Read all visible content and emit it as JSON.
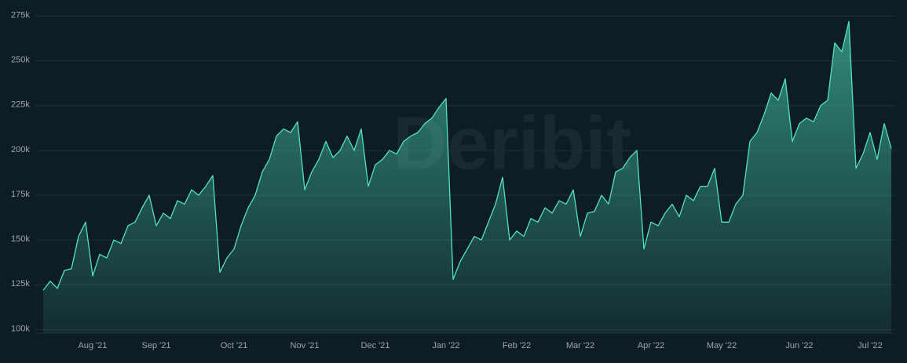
{
  "chart_data": {
    "type": "area",
    "watermark": "Deribit",
    "categories": [
      null,
      null,
      null,
      null,
      null,
      null,
      null,
      "Aug '21",
      null,
      null,
      null,
      null,
      null,
      null,
      null,
      null,
      "Sep '21",
      null,
      null,
      null,
      null,
      null,
      null,
      null,
      null,
      null,
      null,
      "Oct '21",
      null,
      null,
      null,
      null,
      null,
      null,
      null,
      null,
      null,
      "Nov '21",
      null,
      null,
      null,
      null,
      null,
      null,
      null,
      null,
      null,
      "Dec '21",
      null,
      null,
      null,
      null,
      null,
      null,
      null,
      null,
      null,
      "Jan '22",
      null,
      null,
      null,
      null,
      null,
      null,
      null,
      null,
      null,
      "Feb '22",
      null,
      null,
      null,
      null,
      null,
      null,
      null,
      null,
      "Mar '22",
      null,
      null,
      null,
      null,
      null,
      null,
      null,
      null,
      null,
      "Apr '22",
      null,
      null,
      null,
      null,
      null,
      null,
      null,
      null,
      null,
      "May '22",
      null,
      null,
      null,
      null,
      null,
      null,
      null,
      null,
      null,
      null,
      "Jun '22",
      null,
      null,
      null,
      null,
      null,
      null,
      null,
      null,
      null,
      "Jul '22",
      null,
      null,
      null
    ],
    "values": [
      122,
      127,
      123,
      133,
      134,
      152,
      160,
      130,
      142,
      140,
      150,
      148,
      158,
      160,
      168,
      175,
      158,
      165,
      162,
      172,
      170,
      178,
      175,
      180,
      186,
      132,
      140,
      145,
      158,
      168,
      175,
      188,
      195,
      208,
      212,
      210,
      216,
      178,
      188,
      195,
      205,
      196,
      200,
      208,
      200,
      212,
      180,
      192,
      195,
      200,
      198,
      205,
      208,
      210,
      215,
      218,
      224,
      229,
      128,
      138,
      145,
      152,
      150,
      160,
      170,
      185,
      150,
      155,
      152,
      162,
      160,
      168,
      165,
      172,
      170,
      178,
      152,
      165,
      166,
      175,
      170,
      188,
      190,
      196,
      200,
      145,
      160,
      158,
      165,
      170,
      163,
      175,
      172,
      180,
      180,
      190,
      160,
      160,
      170,
      175,
      205,
      210,
      220,
      232,
      228,
      240,
      205,
      215,
      218,
      216,
      225,
      228,
      260,
      255,
      272,
      190,
      198,
      210,
      195,
      215,
      201
    ],
    "color": "#4fe3c1",
    "ylim": [
      98,
      280
    ],
    "yticks": [
      {
        "value": 100,
        "label": "100k"
      },
      {
        "value": 125,
        "label": "125k"
      },
      {
        "value": 150,
        "label": "150k"
      },
      {
        "value": 175,
        "label": "175k"
      },
      {
        "value": 200,
        "label": "200k"
      },
      {
        "value": 225,
        "label": "225k"
      },
      {
        "value": 250,
        "label": "250k"
      },
      {
        "value": 275,
        "label": "275k"
      }
    ],
    "grid": true
  }
}
